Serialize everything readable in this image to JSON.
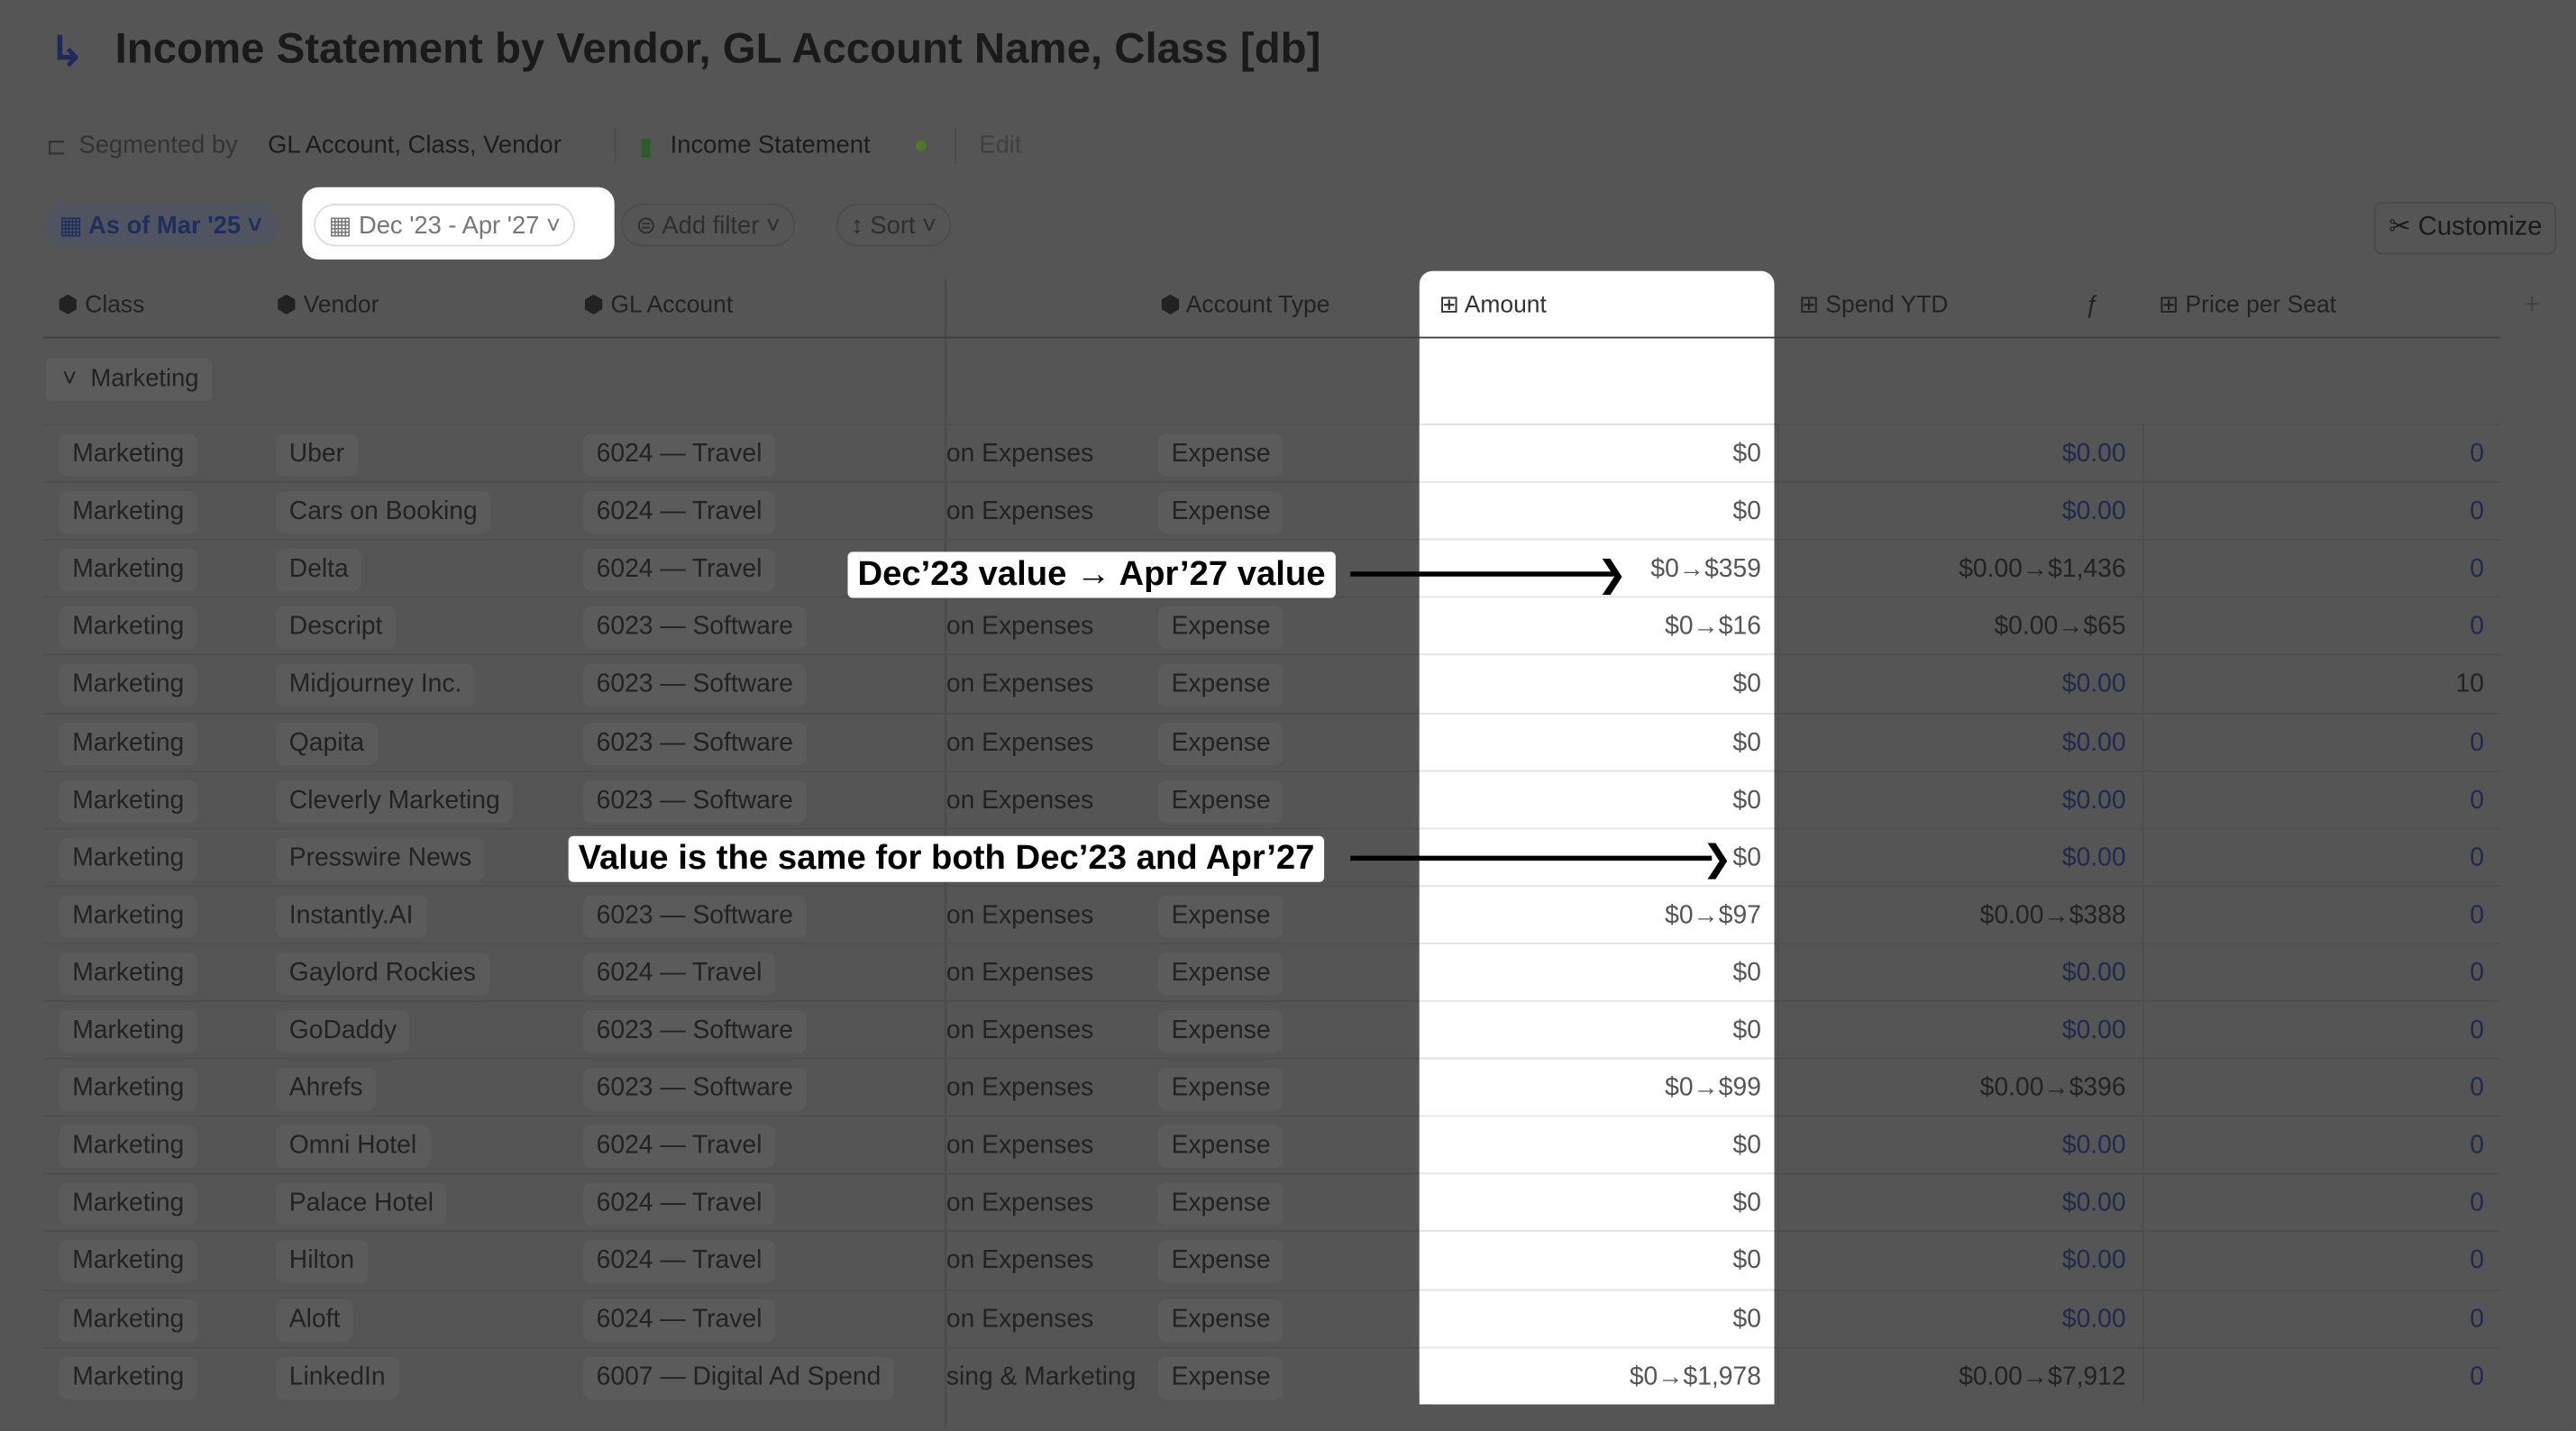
{
  "header": {
    "title": "Income Statement by Vendor, GL Account Name, Class [db]",
    "logo_icon": "return-arrow-icon"
  },
  "meta": {
    "segmented_label": "Segmented by",
    "segmented_value": "GL Account, Class, Vendor",
    "source": "Income Statement",
    "source_status": "verified",
    "edit_label": "Edit"
  },
  "toolbar": {
    "as_of": "As of Mar '25",
    "date_range": "Dec '23 - Apr '27",
    "add_filter": "Add filter",
    "sort": "Sort",
    "customize": "Customize"
  },
  "columns": {
    "class": "Class",
    "vendor": "Vendor",
    "gl_account": "GL Account",
    "account_type": "Account Type",
    "amount": "Amount",
    "spend_ytd": "Spend YTD",
    "formula_icon": "ƒ",
    "price_per_seat": "Price per Seat"
  },
  "group": {
    "label": "Marketing"
  },
  "rows": [
    {
      "class": "Marketing",
      "vendor": "Uber",
      "gl": "6024 — Travel",
      "cat": "on Expenses",
      "type": "Expense",
      "amount": "$0",
      "spend": "$0.00",
      "price": "0",
      "changed": false
    },
    {
      "class": "Marketing",
      "vendor": "Cars on Booking",
      "gl": "6024 — Travel",
      "cat": "on Expenses",
      "type": "Expense",
      "amount": "$0",
      "spend": "$0.00",
      "price": "0",
      "changed": false
    },
    {
      "class": "Marketing",
      "vendor": "Delta",
      "gl": "6024 — Travel",
      "cat": "",
      "type": "",
      "amount": "$0→$359",
      "spend": "$0.00→$1,436",
      "price": "0",
      "changed": true
    },
    {
      "class": "Marketing",
      "vendor": "Descript",
      "gl": "6023 — Software",
      "cat": "on Expenses",
      "type": "Expense",
      "amount": "$0→$16",
      "spend": "$0.00→$65",
      "price": "0",
      "changed": true
    },
    {
      "class": "Marketing",
      "vendor": "Midjourney Inc.",
      "gl": "6023 — Software",
      "cat": "on Expenses",
      "type": "Expense",
      "amount": "$0",
      "spend": "$0.00",
      "price": "10",
      "changed": false
    },
    {
      "class": "Marketing",
      "vendor": "Qapita",
      "gl": "6023 — Software",
      "cat": "on Expenses",
      "type": "Expense",
      "amount": "$0",
      "spend": "$0.00",
      "price": "0",
      "changed": false
    },
    {
      "class": "Marketing",
      "vendor": "Cleverly Marketing",
      "gl": "6023 — Software",
      "cat": "on Expenses",
      "type": "Expense",
      "amount": "$0",
      "spend": "$0.00",
      "price": "0",
      "changed": false
    },
    {
      "class": "Marketing",
      "vendor": "Presswire News",
      "gl": "",
      "cat": "",
      "type": "",
      "amount": "$0",
      "spend": "$0.00",
      "price": "0",
      "changed": false
    },
    {
      "class": "Marketing",
      "vendor": "Instantly.AI",
      "gl": "6023 — Software",
      "cat": "on Expenses",
      "type": "Expense",
      "amount": "$0→$97",
      "spend": "$0.00→$388",
      "price": "0",
      "changed": true
    },
    {
      "class": "Marketing",
      "vendor": "Gaylord Rockies",
      "gl": "6024 — Travel",
      "cat": "on Expenses",
      "type": "Expense",
      "amount": "$0",
      "spend": "$0.00",
      "price": "0",
      "changed": false
    },
    {
      "class": "Marketing",
      "vendor": "GoDaddy",
      "gl": "6023 — Software",
      "cat": "on Expenses",
      "type": "Expense",
      "amount": "$0",
      "spend": "$0.00",
      "price": "0",
      "changed": false
    },
    {
      "class": "Marketing",
      "vendor": "Ahrefs",
      "gl": "6023 — Software",
      "cat": "on Expenses",
      "type": "Expense",
      "amount": "$0→$99",
      "spend": "$0.00→$396",
      "price": "0",
      "changed": true
    },
    {
      "class": "Marketing",
      "vendor": "Omni Hotel",
      "gl": "6024 — Travel",
      "cat": "on Expenses",
      "type": "Expense",
      "amount": "$0",
      "spend": "$0.00",
      "price": "0",
      "changed": false
    },
    {
      "class": "Marketing",
      "vendor": "Palace Hotel",
      "gl": "6024 — Travel",
      "cat": "on Expenses",
      "type": "Expense",
      "amount": "$0",
      "spend": "$0.00",
      "price": "0",
      "changed": false
    },
    {
      "class": "Marketing",
      "vendor": "Hilton",
      "gl": "6024 — Travel",
      "cat": "on Expenses",
      "type": "Expense",
      "amount": "$0",
      "spend": "$0.00",
      "price": "0",
      "changed": false
    },
    {
      "class": "Marketing",
      "vendor": "Aloft",
      "gl": "6024 — Travel",
      "cat": "on Expenses",
      "type": "Expense",
      "amount": "$0",
      "spend": "$0.00",
      "price": "0",
      "changed": false
    },
    {
      "class": "Marketing",
      "vendor": "LinkedIn",
      "gl": "6007 — Digital Ad Spend",
      "cat": "sing & Marketing",
      "type": "Expense",
      "amount": "$0→$1,978",
      "spend": "$0.00→$7,912",
      "price": "0",
      "changed": true
    }
  ],
  "annotations": {
    "first": "Dec’23 value → Apr’27 value",
    "second": "Value is the same for both Dec’23 and Apr’27"
  },
  "colors": {
    "overlay": "#555555",
    "highlight": "#ffffff",
    "link_value": "#1f2a4e",
    "accent": "#1f2f5c",
    "status_ok": "#4a7a2a"
  }
}
